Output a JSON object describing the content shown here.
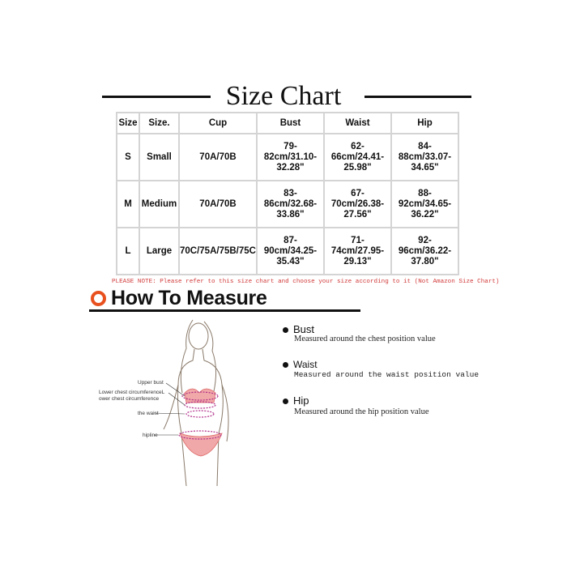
{
  "title": "Size Chart",
  "table": {
    "headers": [
      "Size",
      "Size.",
      "Cup",
      "Bust",
      "Waist",
      "Hip"
    ],
    "rows": [
      [
        "S",
        "Small",
        "70A/70B",
        "79-\n82cm/31.10-\n32.28\"",
        "62-\n66cm/24.41-\n25.98\"",
        "84-\n88cm/33.07-\n34.65\""
      ],
      [
        "M",
        "Medium",
        "70A/70B",
        "83-\n86cm/32.68-\n33.86\"",
        "67-\n70cm/26.38-\n27.56\"",
        "88-\n92cm/34.65-\n36.22\""
      ],
      [
        "L",
        "Large",
        "70C/75A/75B/75C",
        "87-\n90cm/34.25-\n35.43\"",
        "71-\n74cm/27.95-\n29.13\"",
        "92-\n96cm/36.22-\n37.80\""
      ]
    ]
  },
  "note": "PLEASE NOTE: Please refer to this size chart and choose your size according to it (Not Amazon Size Chart)",
  "how_to": {
    "title": "How To Measure",
    "accent": "#e8501e",
    "items": [
      {
        "name": "Bust",
        "desc": "Measured around the chest position value"
      },
      {
        "name": "Waist",
        "desc": "Measured around the waist position value"
      },
      {
        "name": "Hip",
        "desc": "Measured around the  hip position value"
      }
    ],
    "figure_labels": [
      "Upper bust",
      "Lower chest circumferenceL",
      "ower chest circumference",
      "the waist",
      "hipline"
    ]
  }
}
